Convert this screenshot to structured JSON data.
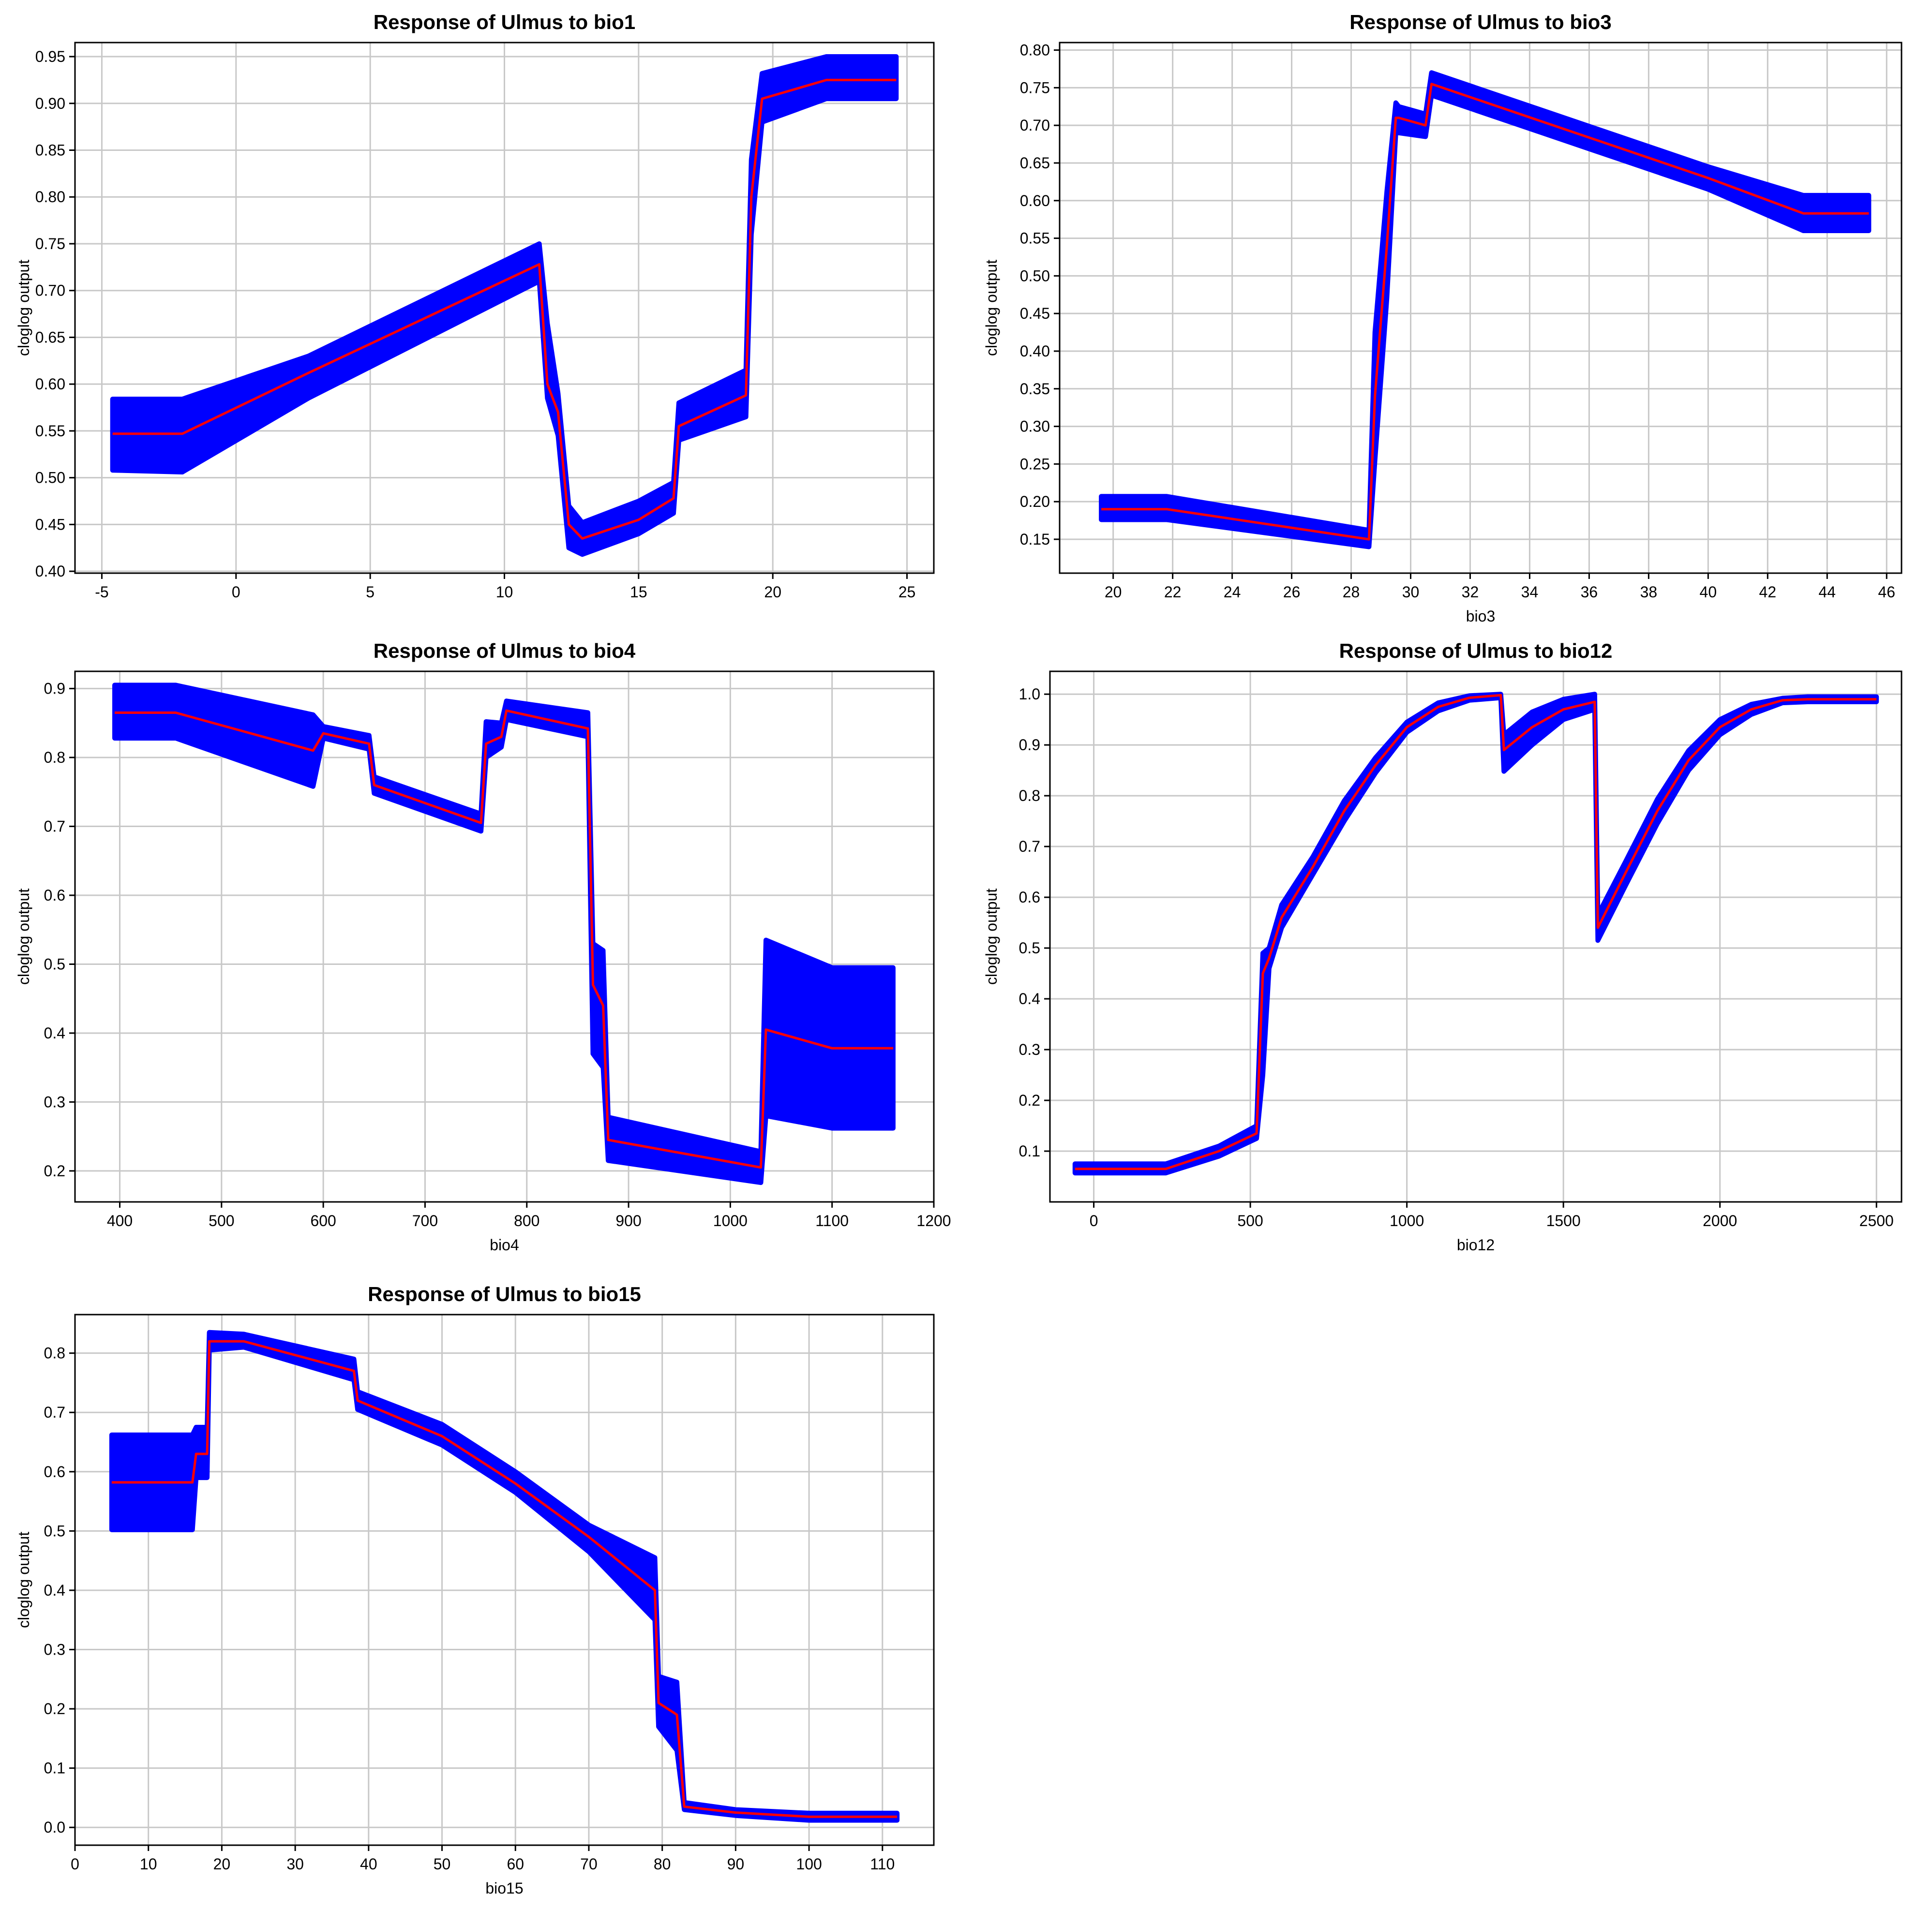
{
  "colors": {
    "band": "#0000ff",
    "mean": "#ff0000",
    "grid": "#c8c8c8"
  },
  "chart_data": [
    {
      "type": "area",
      "title": "Response of Ulmus to bio1",
      "xlabel": "",
      "ylabel": "cloglog output",
      "xlim": [
        -6.0,
        26.0
      ],
      "ylim": [
        0.398,
        0.965
      ],
      "xticks": [
        -5,
        0,
        5,
        10,
        15,
        20,
        25
      ],
      "yticks": [
        0.4,
        0.45,
        0.5,
        0.55,
        0.6,
        0.65,
        0.7,
        0.75,
        0.8,
        0.85,
        0.9,
        0.95
      ],
      "ytick_labels": [
        "0.40",
        "0.45",
        "0.50",
        "0.55",
        "0.60",
        "0.65",
        "0.70",
        "0.75",
        "0.80",
        "0.85",
        "0.90",
        "0.95"
      ],
      "series": [
        {
          "x": [
            -4.6,
            -2.0,
            2.7,
            11.3,
            11.6,
            12.0,
            12.4,
            12.9,
            15.0,
            16.3,
            16.5,
            19.0,
            19.2,
            19.6,
            22.0,
            24.6
          ],
          "mean": [
            0.547,
            0.547,
            0.612,
            0.728,
            0.6,
            0.57,
            0.45,
            0.435,
            0.455,
            0.478,
            0.555,
            0.588,
            0.8,
            0.905,
            0.925,
            0.925
          ],
          "lower": [
            0.508,
            0.506,
            0.585,
            0.71,
            0.585,
            0.545,
            0.425,
            0.418,
            0.44,
            0.462,
            0.54,
            0.565,
            0.76,
            0.88,
            0.905,
            0.905
          ],
          "upper": [
            0.584,
            0.584,
            0.63,
            0.75,
            0.665,
            0.59,
            0.47,
            0.452,
            0.475,
            0.495,
            0.58,
            0.615,
            0.84,
            0.932,
            0.95,
            0.95
          ]
        }
      ]
    },
    {
      "type": "area",
      "title": "Response of Ulmus to bio3",
      "xlabel": "bio3",
      "ylabel": "cloglog output",
      "xlim": [
        18.2,
        46.5
      ],
      "ylim": [
        0.105,
        0.81
      ],
      "xticks": [
        20,
        22,
        24,
        26,
        28,
        30,
        32,
        34,
        36,
        38,
        40,
        42,
        44,
        46
      ],
      "yticks": [
        0.15,
        0.2,
        0.25,
        0.3,
        0.35,
        0.4,
        0.45,
        0.5,
        0.55,
        0.6,
        0.65,
        0.7,
        0.75,
        0.8
      ],
      "ytick_labels": [
        "0.15",
        "0.20",
        "0.25",
        "0.30",
        "0.35",
        "0.40",
        "0.45",
        "0.50",
        "0.55",
        "0.60",
        "0.65",
        "0.70",
        "0.75",
        "0.80"
      ],
      "series": [
        {
          "x": [
            19.6,
            21.8,
            28.6,
            28.8,
            29.2,
            29.5,
            29.6,
            30.5,
            30.7,
            40.0,
            43.2,
            45.4
          ],
          "mean": [
            0.19,
            0.19,
            0.15,
            0.34,
            0.54,
            0.71,
            0.71,
            0.7,
            0.755,
            0.63,
            0.583,
            0.583
          ],
          "lower": [
            0.176,
            0.176,
            0.14,
            0.255,
            0.47,
            0.69,
            0.69,
            0.685,
            0.74,
            0.615,
            0.56,
            0.56
          ],
          "upper": [
            0.207,
            0.207,
            0.162,
            0.425,
            0.612,
            0.73,
            0.725,
            0.715,
            0.77,
            0.645,
            0.607,
            0.607
          ]
        }
      ]
    },
    {
      "type": "area",
      "title": "Response of Ulmus to bio4",
      "xlabel": "bio4",
      "ylabel": "cloglog output",
      "xlim": [
        356.0,
        1200.0
      ],
      "ylim": [
        0.155,
        0.925
      ],
      "xticks": [
        400,
        500,
        600,
        700,
        800,
        900,
        1000,
        1100,
        1200
      ],
      "yticks": [
        0.2,
        0.3,
        0.4,
        0.5,
        0.6,
        0.7,
        0.8,
        0.9
      ],
      "ytick_labels": [
        "0.2",
        "0.3",
        "0.4",
        "0.5",
        "0.6",
        "0.7",
        "0.8",
        "0.9"
      ],
      "series": [
        {
          "x": [
            395,
            455,
            590,
            600,
            645,
            650,
            755,
            760,
            775,
            780,
            860,
            865,
            875,
            880,
            1030,
            1035,
            1100,
            1160
          ],
          "mean": [
            0.865,
            0.865,
            0.81,
            0.835,
            0.82,
            0.76,
            0.705,
            0.82,
            0.83,
            0.868,
            0.842,
            0.47,
            0.44,
            0.245,
            0.205,
            0.405,
            0.378,
            0.378
          ],
          "lower": [
            0.828,
            0.828,
            0.758,
            0.828,
            0.812,
            0.748,
            0.693,
            0.8,
            0.815,
            0.855,
            0.83,
            0.37,
            0.35,
            0.215,
            0.183,
            0.28,
            0.262,
            0.262
          ],
          "upper": [
            0.905,
            0.905,
            0.862,
            0.845,
            0.832,
            0.772,
            0.718,
            0.852,
            0.85,
            0.882,
            0.865,
            0.53,
            0.52,
            0.278,
            0.228,
            0.535,
            0.495,
            0.495
          ]
        }
      ]
    },
    {
      "type": "area",
      "title": "Response of Ulmus to bio12",
      "xlabel": "bio12",
      "ylabel": "cloglog output",
      "xlim": [
        -140.0,
        2580.0
      ],
      "ylim": [
        0.0,
        1.045
      ],
      "xticks": [
        0,
        500,
        1000,
        1500,
        2000,
        2500
      ],
      "yticks": [
        0.1,
        0.2,
        0.3,
        0.4,
        0.5,
        0.6,
        0.7,
        0.8,
        0.9,
        1.0
      ],
      "ytick_labels": [
        "0.1",
        "0.2",
        "0.3",
        "0.4",
        "0.5",
        "0.6",
        "0.7",
        "0.8",
        "0.9",
        "1.0"
      ],
      "series": [
        {
          "x": [
            -60,
            230,
            400,
            520,
            540,
            560,
            600,
            700,
            800,
            900,
            1000,
            1100,
            1200,
            1300,
            1310,
            1400,
            1500,
            1600,
            1610,
            1700,
            1800,
            1900,
            2000,
            2100,
            2200,
            2280,
            2500
          ],
          "mean": [
            0.065,
            0.065,
            0.1,
            0.135,
            0.45,
            0.48,
            0.56,
            0.66,
            0.77,
            0.86,
            0.935,
            0.975,
            0.993,
            0.998,
            0.89,
            0.935,
            0.97,
            0.985,
            0.54,
            0.65,
            0.77,
            0.87,
            0.935,
            0.97,
            0.988,
            0.99,
            0.99
          ],
          "lower": [
            0.057,
            0.057,
            0.09,
            0.125,
            0.25,
            0.46,
            0.54,
            0.645,
            0.75,
            0.845,
            0.925,
            0.967,
            0.988,
            0.993,
            0.848,
            0.9,
            0.95,
            0.97,
            0.515,
            0.625,
            0.745,
            0.85,
            0.92,
            0.96,
            0.983,
            0.985,
            0.985
          ],
          "upper": [
            0.075,
            0.075,
            0.11,
            0.15,
            0.49,
            0.5,
            0.585,
            0.68,
            0.79,
            0.875,
            0.945,
            0.983,
            0.997,
            1.0,
            0.92,
            0.965,
            0.99,
            1.0,
            0.565,
            0.672,
            0.793,
            0.889,
            0.95,
            0.98,
            0.992,
            0.995,
            0.995
          ]
        }
      ]
    },
    {
      "type": "area",
      "title": "Response of Ulmus to bio15",
      "xlabel": "bio15",
      "ylabel": "cloglog output",
      "xlim": [
        0.0,
        117.0
      ],
      "ylim": [
        -0.03,
        0.865
      ],
      "xticks": [
        0,
        10,
        20,
        30,
        40,
        50,
        60,
        70,
        80,
        90,
        100,
        110
      ],
      "yticks": [
        0.0,
        0.1,
        0.2,
        0.3,
        0.4,
        0.5,
        0.6,
        0.7,
        0.8
      ],
      "ytick_labels": [
        "0.0",
        "0.1",
        "0.2",
        "0.3",
        "0.4",
        "0.5",
        "0.6",
        "0.7",
        "0.8"
      ],
      "series": [
        {
          "x": [
            5.0,
            16.0,
            16.5,
            18.0,
            18.3,
            23.0,
            38.0,
            38.5,
            50.0,
            60.0,
            70.0,
            79.0,
            79.5,
            82.0,
            83.0,
            90.0,
            100.0,
            112.0
          ],
          "mean": [
            0.582,
            0.582,
            0.63,
            0.63,
            0.82,
            0.82,
            0.77,
            0.72,
            0.66,
            0.58,
            0.49,
            0.4,
            0.21,
            0.19,
            0.035,
            0.025,
            0.018,
            0.018
          ],
          "lower": [
            0.502,
            0.502,
            0.59,
            0.59,
            0.805,
            0.81,
            0.755,
            0.705,
            0.645,
            0.565,
            0.465,
            0.35,
            0.17,
            0.13,
            0.03,
            0.02,
            0.012,
            0.012
          ],
          "upper": [
            0.662,
            0.662,
            0.675,
            0.675,
            0.835,
            0.832,
            0.79,
            0.735,
            0.68,
            0.6,
            0.51,
            0.455,
            0.255,
            0.245,
            0.042,
            0.03,
            0.024,
            0.024
          ]
        }
      ]
    }
  ]
}
